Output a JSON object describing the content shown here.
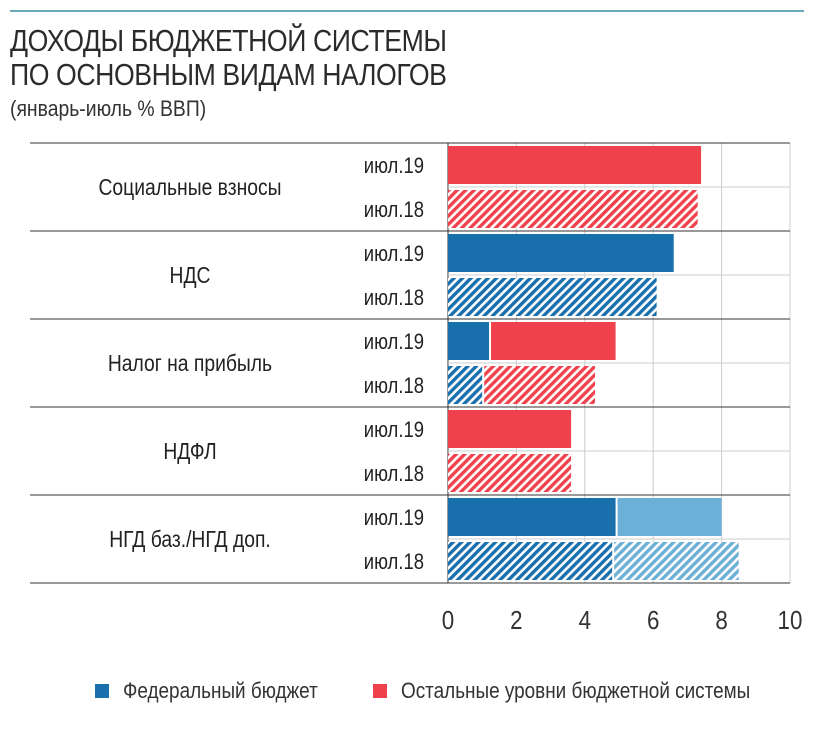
{
  "title_line1": "ДОХОДЫ БЮДЖЕТНОЙ СИСТЕМЫ",
  "title_line2": "ПО ОСНОВНЫМ ВИДАМ НАЛОГОВ",
  "subtitle": "(январь-июль % ВВП)",
  "colors": {
    "federal": "#1a70ad",
    "federal_light": "#6bb0d6",
    "other": "#f0424c",
    "grid": "#cccccc",
    "axis": "#333333"
  },
  "chart_data": {
    "type": "bar",
    "orientation": "horizontal",
    "stacked": true,
    "title": "ДОХОДЫ БЮДЖЕТНОЙ СИСТЕМЫ ПО ОСНОВНЫМ ВИДАМ НАЛОГОВ",
    "subtitle": "(январь-июль % ВВП)",
    "xlim": [
      0,
      10
    ],
    "xticks": [
      "0",
      "2",
      "4",
      "6",
      "8",
      "10"
    ],
    "grid": true,
    "legend_position": "bottom",
    "series_names": [
      "Федеральный бюджет",
      "Остальные уровни бюджетной системы"
    ],
    "groups": [
      {
        "label": "Социальные взносы",
        "rows": [
          {
            "period": "июл.19",
            "hatched": false,
            "federal": 0,
            "other": 7.4
          },
          {
            "period": "июл.18",
            "hatched": true,
            "federal": 0,
            "other": 7.3
          }
        ]
      },
      {
        "label": "НДС",
        "rows": [
          {
            "period": "июл.19",
            "hatched": false,
            "federal": 6.6,
            "other": 0
          },
          {
            "period": "июл.18",
            "hatched": true,
            "federal": 6.1,
            "other": 0
          }
        ]
      },
      {
        "label": "Налог на прибыль",
        "rows": [
          {
            "period": "июл.19",
            "hatched": false,
            "federal": 1.2,
            "other": 3.7
          },
          {
            "period": "июл.18",
            "hatched": true,
            "federal": 1.0,
            "other": 3.3
          }
        ]
      },
      {
        "label": "НДФЛ",
        "rows": [
          {
            "period": "июл.19",
            "hatched": false,
            "federal": 0,
            "other": 3.6
          },
          {
            "period": "июл.18",
            "hatched": true,
            "federal": 0,
            "other": 3.6
          }
        ]
      },
      {
        "label": "НГД баз./НГД доп.",
        "rows": [
          {
            "period": "июл.19",
            "hatched": false,
            "base": 4.9,
            "extra": 3.1
          },
          {
            "period": "июл.18",
            "hatched": true,
            "base": 4.8,
            "extra": 3.7
          }
        ]
      }
    ]
  },
  "legend": {
    "federal_label": "Федеральный бюджет",
    "other_label": "Остальные уровни бюджетной системы"
  }
}
